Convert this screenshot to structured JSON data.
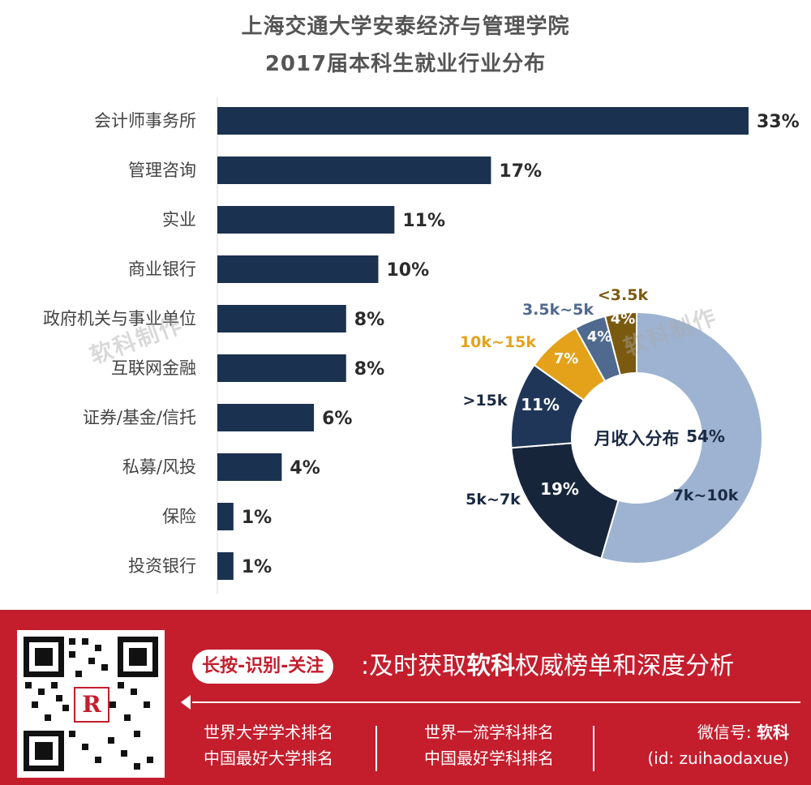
{
  "title_line1": "上海交通大学安泰经济与管理学院",
  "title_line2": "2017届本科生就业行业分布",
  "chart_data": [
    {
      "type": "bar",
      "orientation": "horizontal",
      "title": "上海交通大学安泰经济与管理学院 2017届本科生就业行业分布",
      "categories": [
        "会计师事务所",
        "管理咨询",
        "实业",
        "商业银行",
        "政府机关与事业单位",
        "互联网金融",
        "证券/基金/信托",
        "私募/风投",
        "保险",
        "投资银行"
      ],
      "values": [
        33,
        17,
        11,
        10,
        8,
        8,
        6,
        4,
        1,
        1
      ],
      "value_labels": [
        "33%",
        "17%",
        "11%",
        "10%",
        "8%",
        "8%",
        "6%",
        "4%",
        "1%",
        "1%"
      ],
      "unit": "%",
      "color": "#1b3150",
      "grid": false
    },
    {
      "type": "pie",
      "style": "donut",
      "center_label": "月收入分布",
      "slices": [
        {
          "label": "7k~10k",
          "value": 54,
          "value_label": "54%",
          "color": "#9db3d1"
        },
        {
          "label": "5k~7k",
          "value": 19,
          "value_label": "19%",
          "color": "#17253b"
        },
        {
          "label": ">15k",
          "value": 11,
          "value_label": "11%",
          "color": "#1f3658"
        },
        {
          "label": "10k~15k",
          "value": 7,
          "value_label": "7%",
          "color": "#e3a21a"
        },
        {
          "label": "3.5k~5k",
          "value": 4,
          "value_label": "4%",
          "color": "#4f6a8e"
        },
        {
          "label": "<3.5k",
          "value": 4,
          "value_label": "4%",
          "color": "#7a5a10"
        }
      ]
    }
  ],
  "watermark": "软科制作",
  "footer": {
    "pill_text": "长按-识别-关注",
    "slogan_prefix": ":及时获取",
    "slogan_brand": "软科",
    "slogan_suffix": "权威榜单和深度分析",
    "col1": [
      "世界大学学术排名",
      "中国最好大学排名"
    ],
    "col2": [
      "世界一流学科排名",
      "中国最好学科排名"
    ],
    "col3_line1_prefix": "微信号:",
    "col3_line1_brand": "软科",
    "col3_line2": "(id: zuihaodaxue)",
    "qr_logo_glyph": "R"
  }
}
